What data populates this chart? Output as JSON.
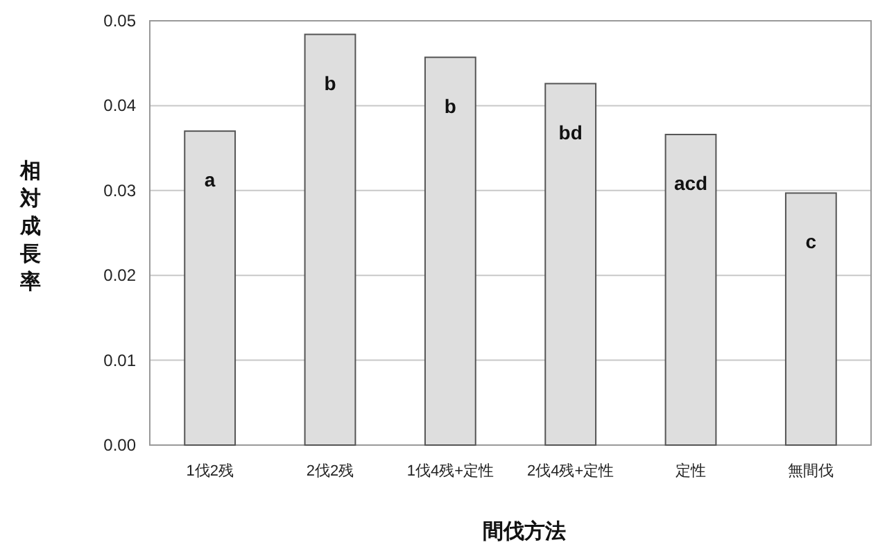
{
  "chart_data": {
    "type": "bar",
    "xlabel": "間伐方法",
    "ylabel": "相対成長率",
    "categories": [
      "1伐2残",
      "2伐2残",
      "1伐4残+定性",
      "2伐4残+定性",
      "定性",
      "無間伐"
    ],
    "values": [
      0.037,
      0.0484,
      0.0457,
      0.0426,
      0.0366,
      0.0297
    ],
    "color": "#dedede",
    "ylim": [
      0,
      0.05
    ],
    "yticks": [
      {
        "value": 0,
        "label": "0.00"
      },
      {
        "value": 0.01,
        "label": "0.01"
      },
      {
        "value": 0.02,
        "label": "0.02"
      },
      {
        "value": 0.03,
        "label": "0.03"
      },
      {
        "value": 0.04,
        "label": "0.04"
      },
      {
        "value": 0.05,
        "label": "0.05"
      }
    ],
    "grid": "y",
    "annotations": [
      "a",
      "b",
      "b",
      "bd",
      "acd",
      "c"
    ]
  }
}
